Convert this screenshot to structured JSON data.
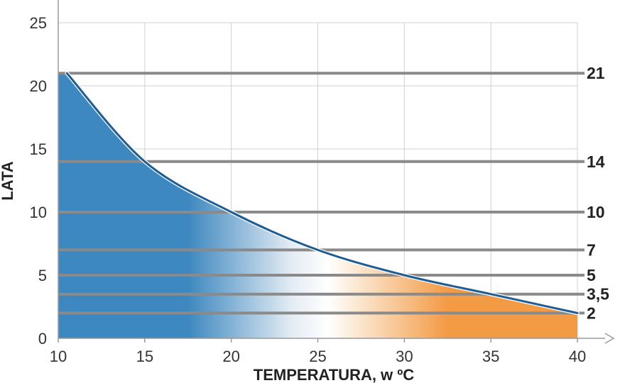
{
  "chart_data": {
    "type": "area",
    "xlabel": "TEMPERATURA, w ºC",
    "ylabel": "LATA",
    "xlim": [
      10,
      40
    ],
    "ylim": [
      0,
      25
    ],
    "x_ticks": [
      10,
      15,
      20,
      25,
      30,
      35,
      40
    ],
    "y_ticks": [
      0,
      5,
      10,
      15,
      20,
      25
    ],
    "grid": true,
    "series": [
      {
        "x": [
          10.5,
          15,
          20,
          25,
          30,
          35,
          40
        ],
        "values": [
          21,
          14,
          10,
          7,
          5,
          3.5,
          2
        ]
      }
    ],
    "reference_lines": [
      {
        "value": 21,
        "label": "21"
      },
      {
        "value": 14,
        "label": "14"
      },
      {
        "value": 10,
        "label": "10"
      },
      {
        "value": 7,
        "label": "7"
      },
      {
        "value": 5,
        "label": "5"
      },
      {
        "value": 3.5,
        "label": "3,5"
      },
      {
        "value": 2,
        "label": "2"
      }
    ],
    "colors": {
      "cold": "#3d88c0",
      "mid": "#ffffff",
      "warm": "#f39a45",
      "curve": "#1e5d94",
      "reference_line": "#8a8a8a",
      "grid": "#d0d0d0",
      "axis": "#9a9a9a"
    }
  }
}
